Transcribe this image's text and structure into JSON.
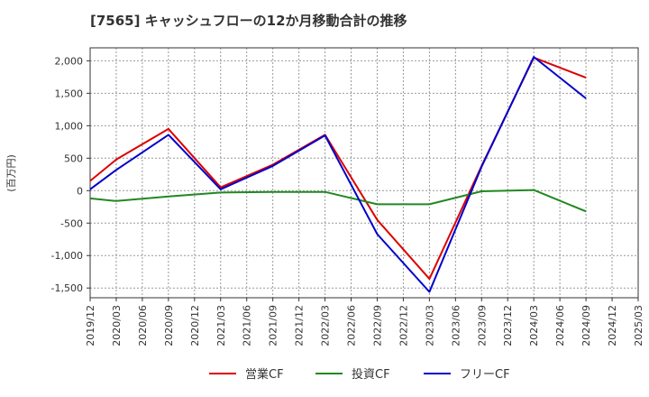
{
  "chart_data": {
    "type": "line",
    "title": "[7565]  キャッシュフローの12か月移動合計の推移",
    "ylabel": "(百万円)",
    "xlabel": "",
    "ylim": [
      -1650,
      2200
    ],
    "yticks": [
      -1500,
      -1000,
      -500,
      0,
      500,
      1000,
      1500,
      2000
    ],
    "ytick_labels": [
      "-1,500",
      "-1,000",
      "-500",
      "0",
      "500",
      "1,000",
      "1,500",
      "2,000"
    ],
    "xticks": [
      "2019/12",
      "2020/03",
      "2020/06",
      "2020/09",
      "2020/12",
      "2021/03",
      "2021/06",
      "2021/09",
      "2021/12",
      "2022/03",
      "2022/06",
      "2022/09",
      "2022/12",
      "2023/03",
      "2023/06",
      "2023/09",
      "2023/12",
      "2024/03",
      "2024/06",
      "2024/09",
      "2024/12",
      "2025/03"
    ],
    "grid": true,
    "legend_position": "bottom",
    "series": [
      {
        "name": "営業CF",
        "color": "#dd0000",
        "x": [
          "2019/12",
          "2020/03",
          "2020/09",
          "2021/03",
          "2021/09",
          "2022/03",
          "2022/09",
          "2023/03",
          "2023/09",
          "2024/03",
          "2024/09"
        ],
        "values": [
          150,
          480,
          950,
          50,
          400,
          860,
          -450,
          -1360,
          380,
          2050,
          1740
        ]
      },
      {
        "name": "投資CF",
        "color": "#228822",
        "x": [
          "2019/12",
          "2020/03",
          "2020/09",
          "2021/03",
          "2021/09",
          "2022/03",
          "2022/09",
          "2023/03",
          "2023/09",
          "2024/03",
          "2024/09"
        ],
        "values": [
          -120,
          -160,
          -90,
          -30,
          -20,
          -20,
          -210,
          -210,
          -10,
          10,
          -320
        ]
      },
      {
        "name": "フリーCF",
        "color": "#0000cc",
        "x": [
          "2019/12",
          "2020/03",
          "2020/09",
          "2021/03",
          "2021/09",
          "2022/03",
          "2022/09",
          "2023/03",
          "2023/09",
          "2024/03",
          "2024/09"
        ],
        "values": [
          20,
          320,
          860,
          20,
          380,
          850,
          -670,
          -1560,
          370,
          2060,
          1420
        ]
      }
    ]
  }
}
